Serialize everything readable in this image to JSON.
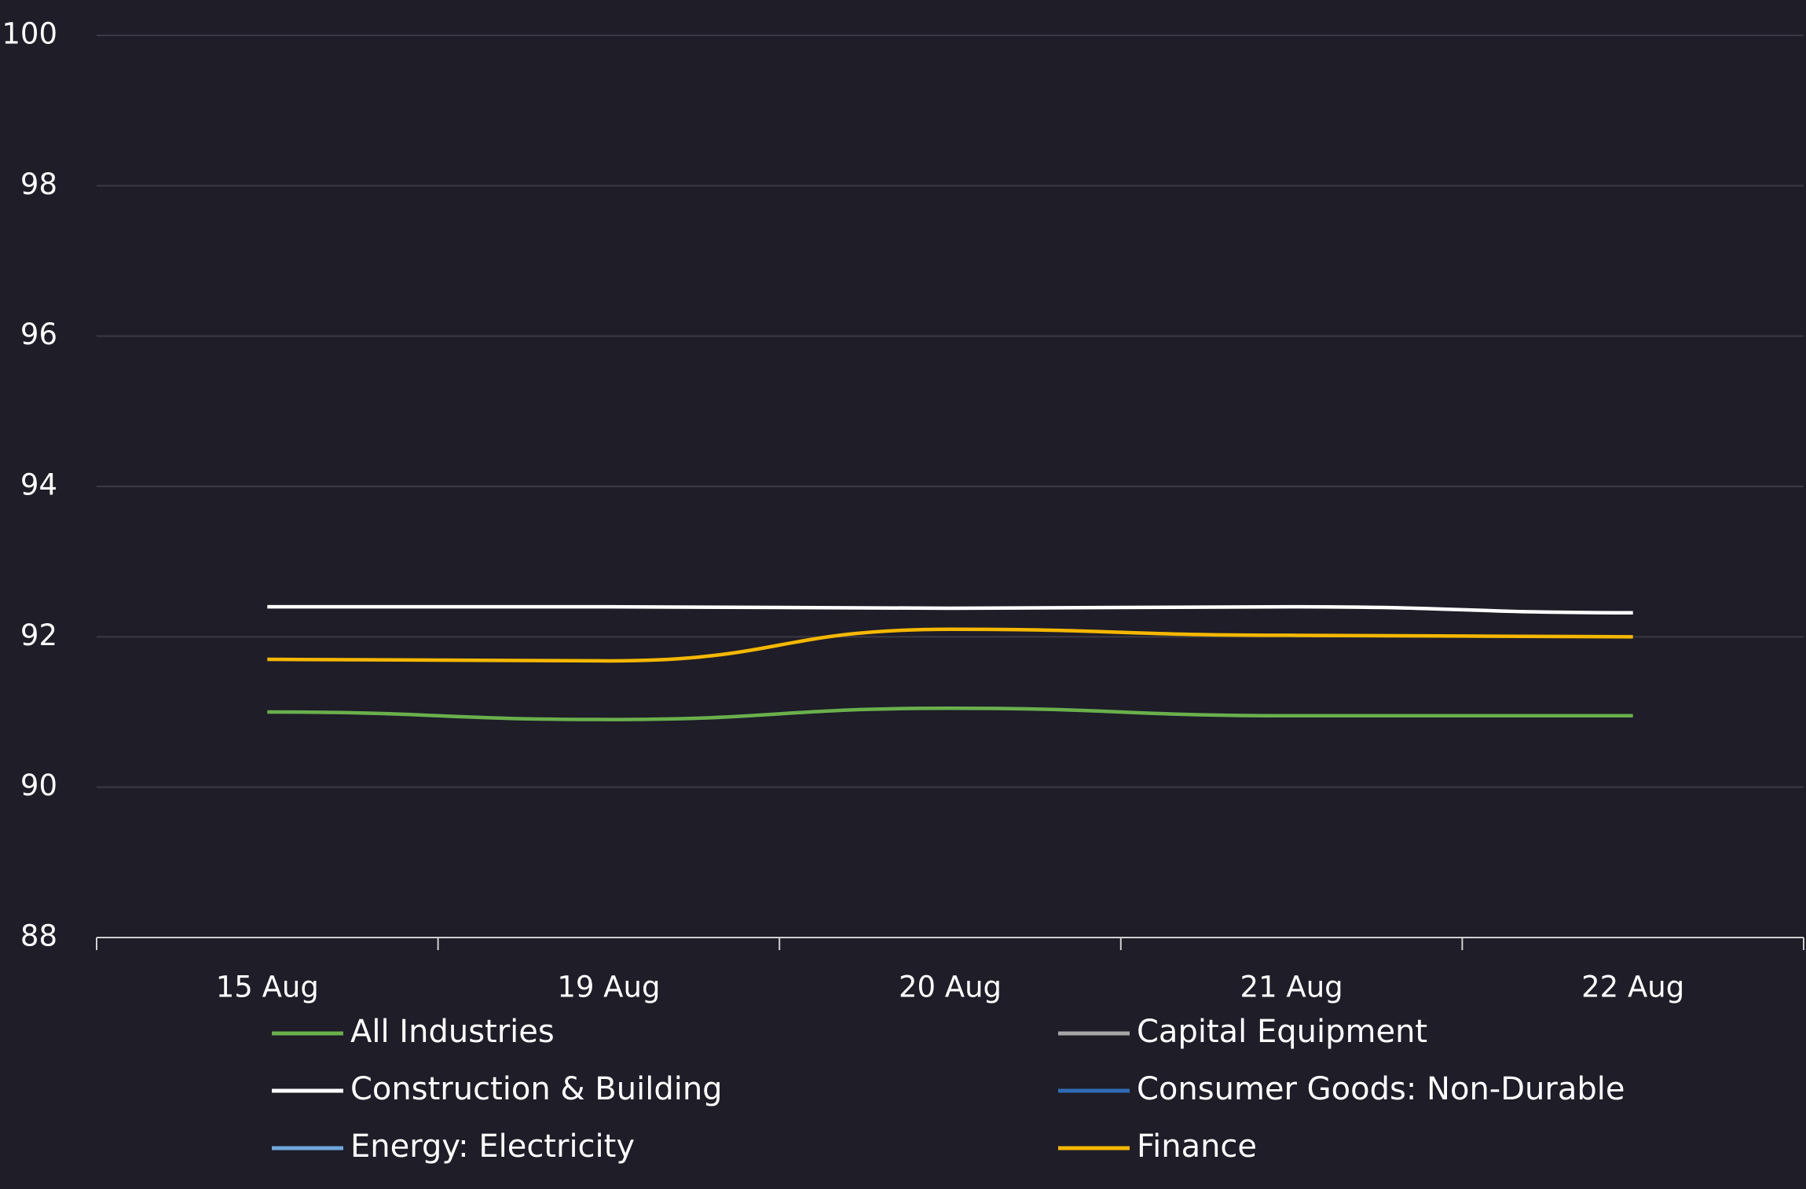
{
  "chart_data": {
    "type": "line",
    "categories": [
      "15 Aug",
      "19 Aug",
      "20 Aug",
      "21 Aug",
      "22 Aug"
    ],
    "series": [
      {
        "name": "All Industries",
        "color": "#6ab04c",
        "values": [
          91.0,
          90.9,
          91.05,
          90.95,
          90.95
        ]
      },
      {
        "name": "Capital Equipment",
        "color": "#a6a6a6",
        "values": [
          null,
          null,
          null,
          null,
          null
        ]
      },
      {
        "name": "Construction & Building",
        "color": "#ffffff",
        "values": [
          92.4,
          92.4,
          92.38,
          92.4,
          92.32
        ]
      },
      {
        "name": "Consumer Goods: Non-Durable",
        "color": "#2f6db5",
        "values": [
          null,
          null,
          null,
          null,
          null
        ]
      },
      {
        "name": "Energy: Electricity",
        "color": "#6fa8dc",
        "values": [
          null,
          null,
          null,
          null,
          null
        ]
      },
      {
        "name": "Finance",
        "color": "#f5b800",
        "values": [
          91.7,
          91.68,
          92.1,
          92.02,
          92.0
        ]
      }
    ],
    "ylim": [
      88,
      100
    ],
    "yticks": [
      88,
      90,
      92,
      94,
      96,
      98,
      100
    ],
    "grid": true
  }
}
